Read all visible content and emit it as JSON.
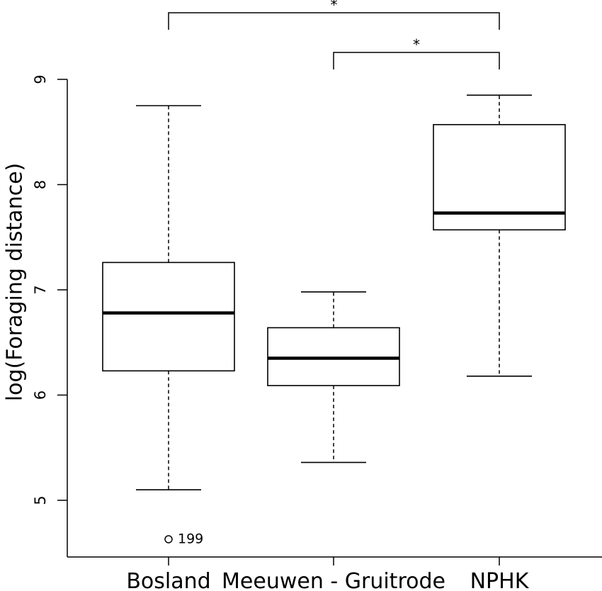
{
  "chart_data": {
    "type": "box",
    "title": "",
    "xlabel": "",
    "ylabel": "log(Foraging distance)",
    "ylim": [
      4.45,
      9.05
    ],
    "yticks": [
      5,
      6,
      7,
      8,
      9
    ],
    "grid": false,
    "categories": [
      "Bosland",
      "Meeuwen - Gruitrode",
      "NPHK"
    ],
    "boxes": [
      {
        "whisker_low": 5.1,
        "q1": 6.23,
        "median": 6.78,
        "q3": 7.26,
        "whisker_high": 8.75
      },
      {
        "whisker_low": 5.36,
        "q1": 6.09,
        "median": 6.35,
        "q3": 6.64,
        "whisker_high": 6.98
      },
      {
        "whisker_low": 6.18,
        "q1": 7.57,
        "median": 7.73,
        "q3": 8.57,
        "whisker_high": 8.85
      }
    ],
    "outliers": [
      {
        "category": "Bosland",
        "value": 4.63,
        "label": "199"
      }
    ],
    "significance": [
      {
        "from": "Bosland",
        "to": "NPHK",
        "label": "*",
        "level": 1
      },
      {
        "from": "Meeuwen - Gruitrode",
        "to": "NPHK",
        "label": "*",
        "level": 2
      }
    ]
  }
}
